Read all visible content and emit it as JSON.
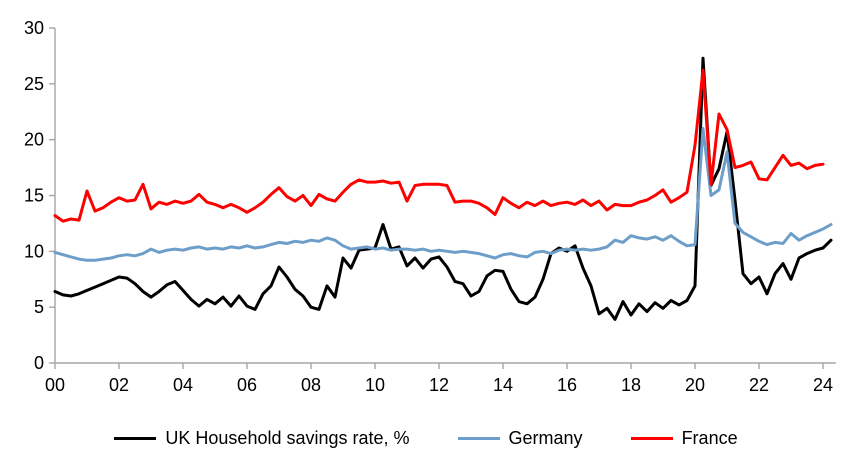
{
  "chart_data": {
    "type": "line",
    "title": "",
    "xlabel": "",
    "ylabel": "",
    "grid": "off",
    "legend_position": "bottom",
    "ylim": [
      0,
      30
    ],
    "y_ticks": [
      0,
      5,
      10,
      15,
      20,
      25,
      30
    ],
    "x_tick_years": [
      0,
      2,
      4,
      6,
      8,
      10,
      12,
      14,
      16,
      18,
      20,
      22,
      24
    ],
    "x_tick_labels": [
      "00",
      "02",
      "04",
      "06",
      "08",
      "10",
      "12",
      "14",
      "16",
      "18",
      "20",
      "22",
      "24"
    ],
    "x_start_year": 2000,
    "x_step_years": 0.25,
    "axis_color": "#a6a6a6",
    "series": [
      {
        "name": "UK Household savings rate, %",
        "color": "#000000",
        "values": [
          6.4,
          6.1,
          6.0,
          6.2,
          6.5,
          6.8,
          7.1,
          7.4,
          7.7,
          7.6,
          7.1,
          6.4,
          5.9,
          6.4,
          7.0,
          7.3,
          6.5,
          5.7,
          5.1,
          5.7,
          5.3,
          5.9,
          5.1,
          6.0,
          5.1,
          4.8,
          6.2,
          6.9,
          8.6,
          7.7,
          6.6,
          6.0,
          5.0,
          4.8,
          6.9,
          5.9,
          9.4,
          8.5,
          10.1,
          10.2,
          10.3,
          12.4,
          10.2,
          10.4,
          8.7,
          9.4,
          8.5,
          9.3,
          9.5,
          8.6,
          7.3,
          7.1,
          6.0,
          6.4,
          7.8,
          8.3,
          8.2,
          6.6,
          5.5,
          5.3,
          5.9,
          7.5,
          9.8,
          10.3,
          10.0,
          10.5,
          8.5,
          6.9,
          4.4,
          4.9,
          3.9,
          5.5,
          4.3,
          5.3,
          4.6,
          5.4,
          4.9,
          5.6,
          5.2,
          5.6,
          6.9,
          27.3,
          15.9,
          17.4,
          20.7,
          14.6,
          8.0,
          7.1,
          7.7,
          6.2,
          8.0,
          8.9,
          7.5,
          9.4,
          9.8,
          10.1,
          10.3,
          11.0
        ]
      },
      {
        "name": "Germany",
        "color": "#6d9dc9",
        "values": [
          9.9,
          9.7,
          9.5,
          9.3,
          9.2,
          9.2,
          9.3,
          9.4,
          9.6,
          9.7,
          9.6,
          9.8,
          10.2,
          9.9,
          10.1,
          10.2,
          10.1,
          10.3,
          10.4,
          10.2,
          10.3,
          10.2,
          10.4,
          10.3,
          10.5,
          10.3,
          10.4,
          10.6,
          10.8,
          10.7,
          10.9,
          10.8,
          11.0,
          10.9,
          11.2,
          11.0,
          10.5,
          10.2,
          10.3,
          10.4,
          10.2,
          10.3,
          10.1,
          10.2,
          10.2,
          10.1,
          10.2,
          10.0,
          10.1,
          10.0,
          9.9,
          10.0,
          9.9,
          9.8,
          9.6,
          9.4,
          9.7,
          9.8,
          9.6,
          9.5,
          9.9,
          10.0,
          9.8,
          10.1,
          10.2,
          10.1,
          10.2,
          10.1,
          10.2,
          10.4,
          11.0,
          10.8,
          11.4,
          11.2,
          11.1,
          11.3,
          11.0,
          11.4,
          10.9,
          10.5,
          10.6,
          21.0,
          15.0,
          15.5,
          18.9,
          12.5,
          11.7,
          11.3,
          10.9,
          10.6,
          10.8,
          10.7,
          11.6,
          11.0,
          11.4,
          11.7,
          12.0,
          12.4
        ]
      },
      {
        "name": "France",
        "color": "#ff0000",
        "values": [
          13.2,
          12.7,
          12.9,
          12.8,
          15.4,
          13.6,
          13.9,
          14.4,
          14.8,
          14.5,
          14.6,
          16.0,
          13.8,
          14.4,
          14.2,
          14.5,
          14.3,
          14.5,
          15.1,
          14.4,
          14.2,
          13.9,
          14.2,
          13.9,
          13.5,
          13.9,
          14.4,
          15.1,
          15.7,
          14.9,
          14.5,
          15.0,
          14.1,
          15.1,
          14.7,
          14.5,
          15.3,
          16.0,
          16.4,
          16.2,
          16.2,
          16.3,
          16.1,
          16.2,
          14.5,
          15.9,
          16.0,
          16.0,
          16.0,
          15.9,
          14.4,
          14.5,
          14.5,
          14.3,
          13.9,
          13.3,
          14.8,
          14.3,
          13.9,
          14.4,
          14.1,
          14.5,
          14.1,
          14.3,
          14.4,
          14.2,
          14.6,
          14.1,
          14.5,
          13.7,
          14.2,
          14.1,
          14.1,
          14.4,
          14.6,
          15.0,
          15.5,
          14.4,
          14.8,
          15.3,
          19.5,
          26.2,
          16.0,
          22.3,
          20.9,
          17.5,
          17.7,
          18.0,
          16.5,
          16.4,
          17.5,
          18.6,
          17.7,
          17.9,
          17.4,
          17.7,
          17.8
        ]
      }
    ]
  }
}
